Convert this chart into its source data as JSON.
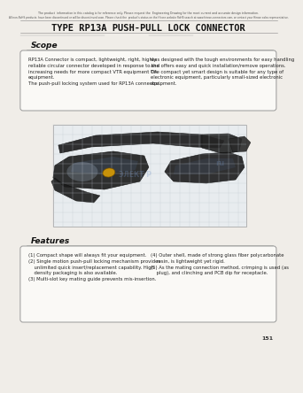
{
  "bg_color": "#f0ede8",
  "header_text1": "The product  information in this catalog is for reference only. Please request the  Engineering Drawing for the most current and accurate design information.",
  "header_text2": "All non-RoHS products  have been discontinued or will be discontinued soon. Please check the  product's status on the Hirose website RoHS search at www.hirose-connectors.com, or contact your Hirose sales representative.",
  "title": "TYPE RP13A PUSH-PULL LOCK CONNECTOR",
  "scope_title": "Scope",
  "scope_text_left": "RP13A Connector is compact, lightweight, right, highly\nreliable circular connector developed in response to the\nincreasing needs for more compact VTR equipment OA\nequipment.\nThe push-pull locking system used for RP13A connector,",
  "scope_text_right": "was designed with the tough environments for easy handling\nand offers easy and quick installation/remove operations.\nThe compact yet smart design is suitable for any type of\nelectronic equipment, particularly small-sized electronic\nequipment.",
  "features_title": "Features",
  "features_left": "(1) Compact shape will always fit your equipment.\n(2) Single motion push-pull locking mechanism provides\n    unlimited quick insert/replacement capability. High\n    density packaging is also available.\n(3) Multi-slot key mating guide prevents mis-insertion.",
  "features_right": "(4) Outer shell, made of strong glass fiber polycarbonate\n    resin, is lightweight yet rigid.\n(5) As the mating connection method, crimping is used (as\n    plug), and clinching and PCB dip for receptacle.",
  "page_num": "151",
  "title_fontsize": 7.5,
  "header_fontsize": 2.5,
  "scope_title_fontsize": 6.5,
  "body_fontsize": 3.8,
  "features_title_fontsize": 6.5
}
